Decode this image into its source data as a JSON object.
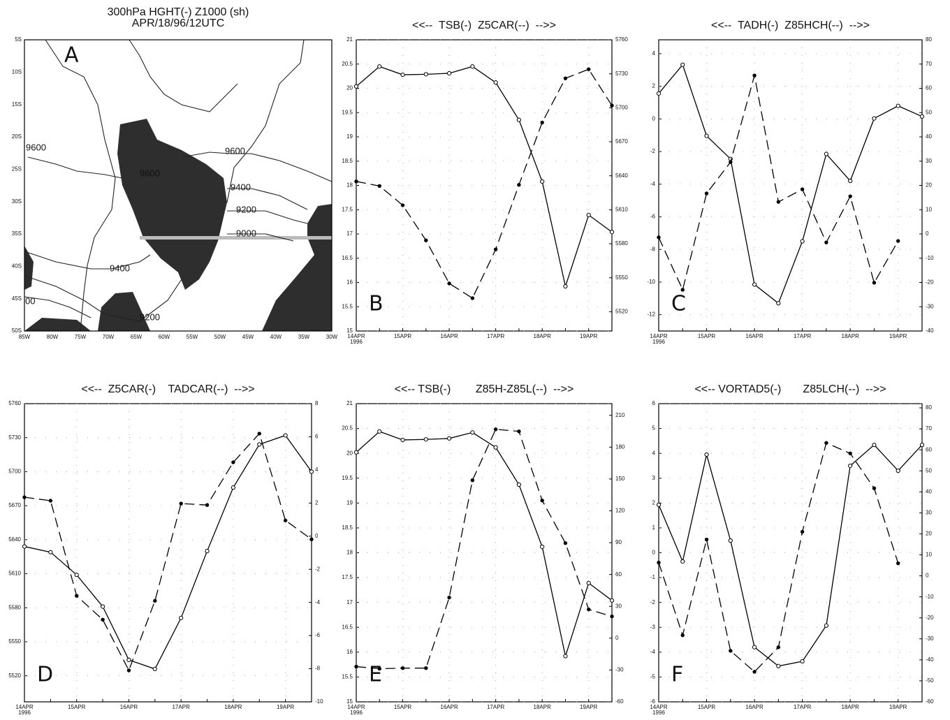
{
  "chart_data": [
    {
      "type": "map",
      "title": [
        "300hPa HGHT(-) Z1000 (sh)",
        "APR/18/96/12UTC"
      ],
      "panel_label": "A",
      "lat_labels": [
        "5S",
        "10S",
        "15S",
        "20S",
        "25S",
        "30S",
        "35S",
        "40S",
        "45S",
        "50S"
      ],
      "lon_labels": [
        "85W",
        "80W",
        "75W",
        "70W",
        "65W",
        "60W",
        "55W",
        "50W",
        "45W",
        "40W",
        "35W",
        "30W"
      ],
      "contour_labels": [
        9600,
        9600,
        9600,
        9400,
        9200,
        9000,
        9400,
        9200,
        "00"
      ]
    },
    {
      "type": "line",
      "title": "<<--  TSB(-)  Z5CAR(--)  -->>",
      "panel_label": "B",
      "categories": [
        "14APR",
        null,
        "15APR",
        null,
        "16APR",
        null,
        "17APR",
        null,
        "18APR",
        null,
        "19APR",
        null
      ],
      "x_sublabel": "1996",
      "ylim": [
        15,
        21
      ],
      "yticks": [
        15,
        15.5,
        16,
        16.5,
        17,
        17.5,
        18,
        18.5,
        19,
        19.5,
        20,
        20.5,
        21
      ],
      "y2lim": [
        5503,
        5760
      ],
      "y2ticks": [
        5520,
        5550,
        5580,
        5610,
        5640,
        5670,
        5700,
        5730,
        5760
      ],
      "grid": true,
      "series": [
        {
          "line": "solid",
          "marker": "open",
          "color": "#000000",
          "values": [
            20.04,
            20.45,
            20.28,
            20.29,
            20.31,
            20.45,
            20.12,
            19.35,
            18.08,
            15.92,
            17.39,
            17.04
          ]
        },
        {
          "line": "dashed",
          "marker": "filled",
          "color": "#000000",
          "axis": "y2",
          "values": [
            5635,
            5631,
            5614,
            5583,
            5545,
            5532,
            5575,
            5632,
            5687,
            5726,
            5734,
            5702
          ]
        }
      ]
    },
    {
      "type": "line",
      "title": "<<--  TADH(-)  Z85HCH(--)  -->>",
      "panel_label": "C",
      "categories": [
        "14APR",
        null,
        "15APR",
        null,
        "16APR",
        null,
        "17APR",
        null,
        "18APR",
        null,
        "19APR",
        null
      ],
      "x_sublabel": "1996",
      "ylim": [
        -13,
        4.85
      ],
      "yticks": [
        -12,
        -10,
        -8,
        -6,
        -4,
        -2,
        0,
        2,
        4
      ],
      "y2lim": [
        -40,
        80
      ],
      "y2ticks": [
        -40,
        -30,
        -20,
        -10,
        0,
        10,
        20,
        30,
        40,
        50,
        60,
        70,
        80
      ],
      "grid": true,
      "series": [
        {
          "line": "solid",
          "marker": "open",
          "color": "#000000",
          "values": [
            1.56,
            3.32,
            -1.04,
            -2.45,
            -10.15,
            -11.3,
            -7.5,
            -2.15,
            -3.8,
            0.03,
            0.8,
            0.15
          ]
        },
        {
          "line": "dashed",
          "marker": "filled",
          "color": "#000000",
          "axis": "y2",
          "values": [
            -1.4,
            -23,
            16.7,
            29.6,
            65.3,
            13.2,
            18.4,
            -3.5,
            15.5,
            -20.1,
            -2.9,
            null
          ]
        }
      ]
    },
    {
      "type": "line",
      "title": "<<--  Z5CAR(-)    TADCAR(--)  -->>",
      "panel_label": "D",
      "categories": [
        "14APR",
        null,
        "15APR",
        null,
        "16APR",
        null,
        "17APR",
        null,
        "18APR",
        null,
        "19APR",
        null
      ],
      "x_sublabel": "1996",
      "ylim": [
        5497,
        5760
      ],
      "yticks": [
        5520,
        5550,
        5580,
        5610,
        5640,
        5670,
        5700,
        5730,
        5760
      ],
      "y2lim": [
        -10,
        8
      ],
      "y2ticks": [
        -10,
        -8,
        -6,
        -4,
        -2,
        0,
        2,
        4,
        6,
        8
      ],
      "grid": true,
      "series": [
        {
          "line": "solid",
          "marker": "open",
          "color": "#000000",
          "values": [
            5634,
            5629,
            5609,
            5581,
            5534,
            5526,
            5571,
            5630,
            5686,
            5724,
            5732,
            5700
          ]
        },
        {
          "line": "dashed",
          "marker": "filled",
          "color": "#000000",
          "axis": "y2",
          "values": [
            2.35,
            2.14,
            -3.6,
            -5.04,
            -8.1,
            -3.9,
            1.97,
            1.88,
            4.46,
            6.19,
            0.95,
            -0.19
          ]
        }
      ]
    },
    {
      "type": "line",
      "title": "<<-- TSB(-)        Z85H-Z85L(--)  -->>",
      "panel_label": "E",
      "categories": [
        "14APR",
        null,
        "15APR",
        null,
        "16APR",
        null,
        "17APR",
        null,
        "18APR",
        null,
        "19APR",
        null
      ],
      "x_sublabel": "1996",
      "ylim": [
        15,
        21
      ],
      "yticks": [
        15,
        15.5,
        16,
        16.5,
        17,
        17.5,
        18,
        18.5,
        19,
        19.5,
        20,
        20.5,
        21
      ],
      "y2lim": [
        -60,
        221
      ],
      "y2ticks": [
        -60,
        -30,
        0,
        30,
        60,
        90,
        120,
        150,
        180,
        210
      ],
      "grid": true,
      "series": [
        {
          "line": "solid",
          "marker": "open",
          "color": "#000000",
          "values": [
            20.02,
            20.44,
            20.27,
            20.28,
            20.3,
            20.42,
            20.12,
            19.37,
            18.12,
            15.92,
            17.39,
            17.04
          ]
        },
        {
          "line": "dashed",
          "marker": "filled",
          "color": "#000000",
          "axis": "y2",
          "values": [
            -26.8,
            -28.8,
            -28.2,
            -28.2,
            38.3,
            148.8,
            196.8,
            194.9,
            129.7,
            89.6,
            27.1,
            20.5
          ]
        }
      ]
    },
    {
      "type": "line",
      "title": "<<-- VORTAD5(-)       Z85LCH(--)  -->>",
      "panel_label": "F",
      "categories": [
        "14APR",
        null,
        "15APR",
        null,
        "16APR",
        null,
        "17APR",
        null,
        "18APR",
        null,
        "19APR",
        null
      ],
      "x_sublabel": "1996",
      "ylim": [
        -6,
        6
      ],
      "yticks": [
        -6,
        -5,
        -4,
        -3,
        -2,
        -1,
        0,
        1,
        2,
        3,
        4,
        5,
        6
      ],
      "y2lim": [
        -60,
        82
      ],
      "y2ticks": [
        -60,
        -50,
        -40,
        -30,
        -20,
        -10,
        0,
        10,
        20,
        30,
        40,
        50,
        60,
        70,
        80
      ],
      "grid": true,
      "series": [
        {
          "line": "solid",
          "marker": "open",
          "color": "#000000",
          "values": [
            1.93,
            -0.35,
            3.95,
            0.49,
            -3.8,
            -4.56,
            -4.37,
            -2.93,
            3.5,
            4.34,
            3.3,
            4.34
          ]
        },
        {
          "line": "dashed",
          "marker": "filled",
          "color": "#000000",
          "axis": "y2",
          "values": [
            6.3,
            -28.3,
            17.3,
            -35.7,
            -45.7,
            -34,
            21,
            63.3,
            58.3,
            41.7,
            6,
            null
          ]
        }
      ]
    }
  ]
}
